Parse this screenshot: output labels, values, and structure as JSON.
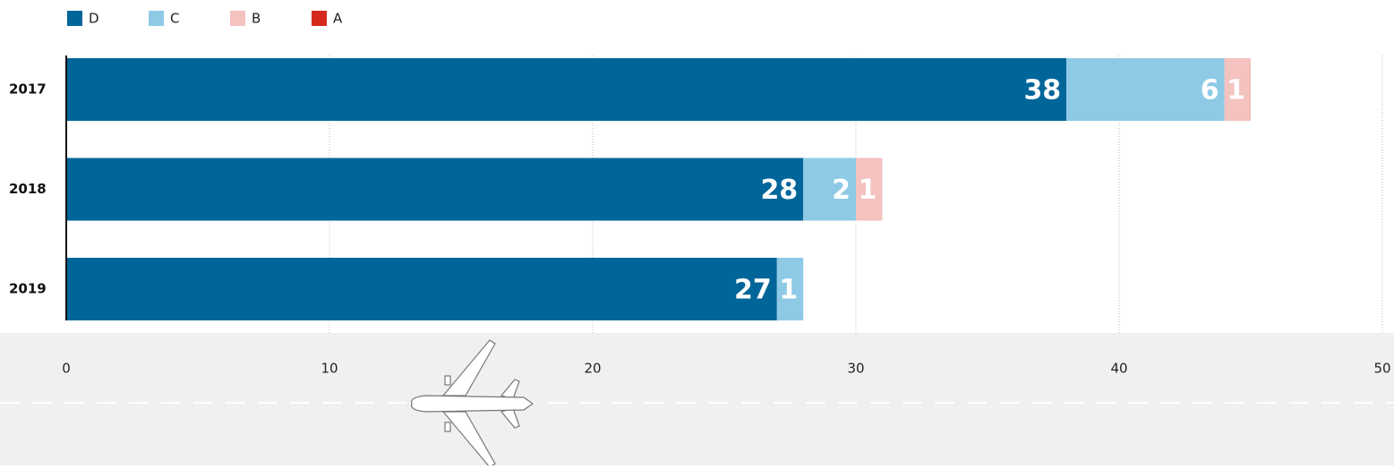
{
  "chart_data": {
    "type": "stacked-bar-horizontal",
    "categories": [
      "2017",
      "2018",
      "2019"
    ],
    "series": [
      {
        "name": "D",
        "color": "#006699",
        "values": [
          38,
          28,
          27
        ]
      },
      {
        "name": "C",
        "color": "#8ecae6",
        "values": [
          6,
          2,
          1
        ]
      },
      {
        "name": "B",
        "color": "#f4c2bf",
        "values": [
          1,
          1,
          null
        ]
      },
      {
        "name": "A",
        "color": "#d52b1e",
        "values": [
          null,
          null,
          null
        ]
      }
    ],
    "xlim": [
      0,
      50
    ],
    "xticks": [
      0,
      10,
      20,
      30,
      40,
      50
    ],
    "grid": true
  }
}
